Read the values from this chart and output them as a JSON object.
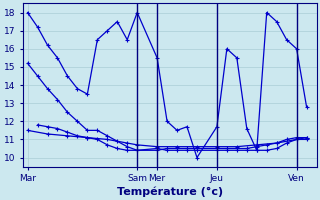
{
  "background_color": "#cce8ef",
  "grid_color": "#aacdd6",
  "line_color": "#0000cc",
  "xlabel": "Température (°c)",
  "xlabel_fontsize": 8,
  "ylim": [
    9.5,
    18.5
  ],
  "yticks": [
    10,
    11,
    12,
    13,
    14,
    15,
    16,
    17,
    18
  ],
  "xtick_labels": [
    "Mar",
    "Sam",
    "Mer",
    "Jeu",
    "Ven"
  ],
  "xtick_positions": [
    0,
    11,
    13,
    19,
    27
  ],
  "xlim": [
    -0.5,
    29
  ],
  "series": [
    {
      "x": [
        0,
        1,
        2,
        3,
        4,
        5,
        6,
        7,
        8,
        9,
        10,
        11,
        13,
        14,
        15,
        16,
        17,
        19,
        20,
        21,
        22,
        23,
        24,
        25,
        26,
        27,
        28
      ],
      "y": [
        18,
        17.2,
        16.2,
        15.5,
        14.5,
        13.8,
        13.5,
        16.5,
        17.0,
        17.5,
        16.5,
        18.0,
        15.5,
        12.0,
        11.5,
        11.7,
        10.0,
        11.7,
        16.0,
        15.5,
        11.6,
        10.4,
        18.0,
        17.5,
        16.5,
        16.0,
        12.8
      ]
    },
    {
      "x": [
        1,
        2,
        3,
        4,
        5,
        6,
        7,
        8,
        9,
        10,
        11,
        13,
        14,
        15,
        16,
        17,
        19,
        20,
        21,
        22,
        23,
        24,
        25,
        26,
        27,
        28
      ],
      "y": [
        11.8,
        11.7,
        11.6,
        11.4,
        11.2,
        11.1,
        11.0,
        10.7,
        10.5,
        10.4,
        10.4,
        10.4,
        10.5,
        10.5,
        10.5,
        10.5,
        10.5,
        10.5,
        10.5,
        10.5,
        10.6,
        10.7,
        10.8,
        11.0,
        11.1,
        11.1
      ]
    },
    {
      "x": [
        0,
        1,
        2,
        3,
        4,
        5,
        6,
        7,
        8,
        9,
        10,
        11,
        13,
        14,
        15,
        16,
        17,
        19,
        20,
        21,
        22,
        23,
        24,
        25,
        26,
        27,
        28
      ],
      "y": [
        15.2,
        14.5,
        13.8,
        13.2,
        12.5,
        12.0,
        11.5,
        11.5,
        11.2,
        10.9,
        10.6,
        10.4,
        10.5,
        10.4,
        10.4,
        10.4,
        10.4,
        10.4,
        10.4,
        10.4,
        10.4,
        10.4,
        10.4,
        10.5,
        10.8,
        11.0,
        11.0
      ]
    },
    {
      "x": [
        0,
        2,
        4,
        6,
        8,
        10,
        11,
        13,
        15,
        17,
        19,
        21,
        23,
        25,
        27,
        28
      ],
      "y": [
        11.5,
        11.3,
        11.2,
        11.1,
        11.0,
        10.8,
        10.7,
        10.6,
        10.6,
        10.6,
        10.6,
        10.6,
        10.7,
        10.8,
        11.0,
        11.1
      ]
    }
  ]
}
